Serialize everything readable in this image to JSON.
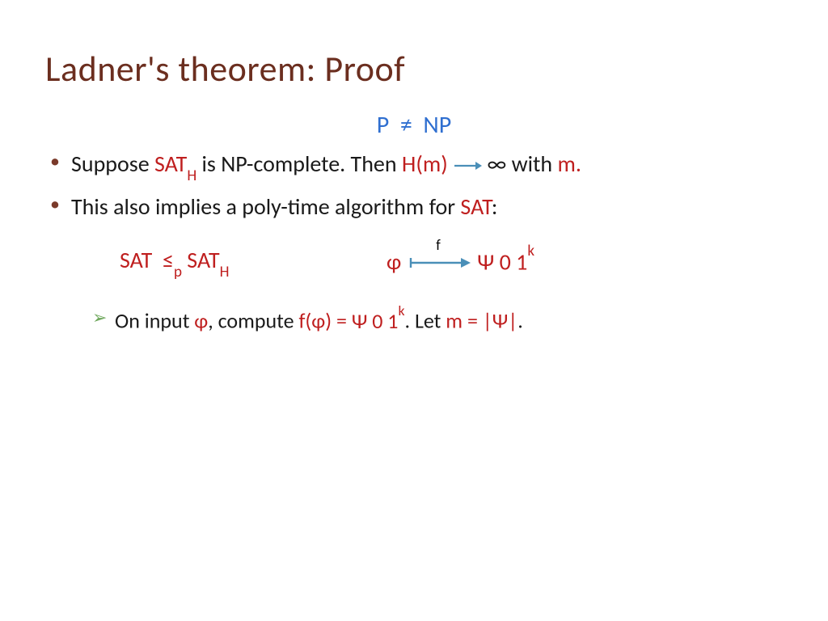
{
  "colors": {
    "title": "#6b2e1f",
    "body": "#1a1a1a",
    "accent_red": "#bf1f1f",
    "accent_blue": "#2f6fd0",
    "arrow": "#4a8fb8",
    "chevron": "#6fa85d"
  },
  "title": "Ladner's theorem:  Proof",
  "subtitle": {
    "left": "P",
    "op": "≠",
    "right": "NP"
  },
  "bullets": [
    {
      "t1": "Suppose ",
      "sat": "SAT",
      "satSub": "H",
      "t2": " is NP-complete.  Then ",
      "hm": "H(m)",
      "t3": " ",
      "inf": "∞",
      "t4": " with ",
      "mvar": "m."
    },
    {
      "t1": "This also implies a poly-time algorithm for ",
      "sat": "SAT",
      "t2": ":"
    }
  ],
  "reduction": {
    "left": {
      "sat1": "SAT",
      "op": "≤",
      "opSub": "p",
      "sat2": "SAT",
      "sat2Sub": "H"
    },
    "right": {
      "phi": "φ",
      "fLabel": "f",
      "psi": "Ψ",
      "zero": "0",
      "one": "1",
      "kSup": "k"
    }
  },
  "subbullet": {
    "t1": "On input ",
    "phi": "φ",
    "t2": ", compute ",
    "fopen": "f(",
    "phi2": "φ",
    "fclose": ")",
    "eq": " = ",
    "psi": "Ψ",
    "sp": " ",
    "zero": "0",
    "one": "1",
    "kSup": "k",
    "t3": ". Let ",
    "m": "m",
    "eq2": " = ",
    "abs1": "|",
    "psi2": "Ψ",
    "abs2": "|",
    "t4": "."
  },
  "fonts": {
    "title_size": 44,
    "body_size": 28,
    "sub_size": 26
  }
}
